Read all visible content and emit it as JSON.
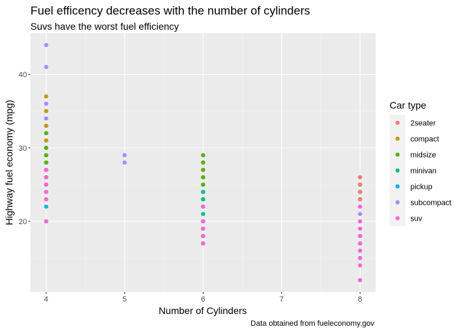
{
  "chart_data": {
    "type": "scatter",
    "title": "Fuel efficency decreases with the number of cylinders",
    "subtitle": "Suvs have the worst fuel efficiency",
    "xlabel": "Number of Cylinders",
    "ylabel": "Highway fuel economy (mpg)",
    "caption": "Data obtained from fueleconomy.gov",
    "xlim": [
      3.8,
      8.2
    ],
    "ylim": [
      10.4,
      45.6
    ],
    "x_ticks": [
      4,
      5,
      6,
      7,
      8
    ],
    "y_ticks": [
      20,
      30,
      40
    ],
    "grid": true,
    "legend": {
      "title": "Car type",
      "position": "right",
      "entries": [
        "2seater",
        "compact",
        "midsize",
        "minivan",
        "pickup",
        "subcompact",
        "suv"
      ]
    },
    "colors": {
      "2seater": "#F8766D",
      "compact": "#C49A00",
      "midsize": "#53B400",
      "minivan": "#00C094",
      "pickup": "#00B6EB",
      "subcompact": "#A58AFF",
      "suv": "#FB61D7"
    },
    "series": [
      {
        "name": "subcompact",
        "points": [
          [
            4,
            44
          ],
          [
            4,
            41
          ],
          [
            4,
            36
          ],
          [
            4,
            35
          ],
          [
            4,
            34
          ],
          [
            4,
            33
          ],
          [
            4,
            32
          ],
          [
            4,
            31
          ],
          [
            4,
            30
          ],
          [
            4,
            29
          ],
          [
            4,
            28
          ],
          [
            4,
            27
          ],
          [
            4,
            26
          ],
          [
            4,
            25
          ],
          [
            4,
            24
          ],
          [
            5,
            29
          ],
          [
            5,
            28
          ],
          [
            6,
            28
          ],
          [
            6,
            26
          ],
          [
            6,
            25
          ],
          [
            6,
            24
          ],
          [
            6,
            23
          ],
          [
            6,
            22
          ],
          [
            8,
            26
          ],
          [
            8,
            25
          ],
          [
            8,
            24
          ],
          [
            8,
            23
          ],
          [
            8,
            22
          ],
          [
            8,
            21
          ],
          [
            8,
            20
          ]
        ]
      },
      {
        "name": "compact",
        "points": [
          [
            4,
            37
          ],
          [
            4,
            35
          ],
          [
            4,
            33
          ],
          [
            4,
            31
          ],
          [
            4,
            30
          ],
          [
            4,
            29
          ],
          [
            4,
            28
          ],
          [
            4,
            27
          ],
          [
            4,
            26
          ],
          [
            4,
            25
          ],
          [
            4,
            24
          ],
          [
            4,
            23
          ],
          [
            6,
            27
          ],
          [
            6,
            26
          ],
          [
            6,
            25
          ],
          [
            6,
            24
          ],
          [
            6,
            23
          ]
        ]
      },
      {
        "name": "midsize",
        "points": [
          [
            4,
            32
          ],
          [
            4,
            30
          ],
          [
            4,
            29
          ],
          [
            4,
            28
          ],
          [
            4,
            27
          ],
          [
            4,
            26
          ],
          [
            6,
            29
          ],
          [
            6,
            28
          ],
          [
            6,
            27
          ],
          [
            6,
            26
          ],
          [
            6,
            25
          ],
          [
            6,
            24
          ],
          [
            8,
            25
          ],
          [
            8,
            24
          ],
          [
            8,
            23
          ]
        ]
      },
      {
        "name": "minivan",
        "points": [
          [
            4,
            24
          ],
          [
            6,
            24
          ],
          [
            6,
            23
          ],
          [
            6,
            22
          ],
          [
            6,
            21
          ],
          [
            6,
            17
          ]
        ]
      },
      {
        "name": "pickup",
        "points": [
          [
            4,
            22
          ],
          [
            4,
            20
          ],
          [
            6,
            20
          ],
          [
            6,
            19
          ],
          [
            6,
            18
          ],
          [
            6,
            17
          ],
          [
            8,
            18
          ],
          [
            8,
            17
          ],
          [
            8,
            16
          ],
          [
            8,
            15
          ],
          [
            8,
            12
          ]
        ]
      },
      {
        "name": "2seater",
        "points": [
          [
            8,
            26
          ],
          [
            8,
            25
          ],
          [
            8,
            24
          ],
          [
            8,
            23
          ]
        ]
      },
      {
        "name": "suv",
        "points": [
          [
            4,
            27
          ],
          [
            4,
            26
          ],
          [
            4,
            25
          ],
          [
            4,
            24
          ],
          [
            4,
            23
          ],
          [
            4,
            20
          ],
          [
            6,
            22
          ],
          [
            6,
            20
          ],
          [
            6,
            19
          ],
          [
            6,
            18
          ],
          [
            6,
            17
          ],
          [
            8,
            22
          ],
          [
            8,
            20
          ],
          [
            8,
            19
          ],
          [
            8,
            18
          ],
          [
            8,
            17
          ],
          [
            8,
            16
          ],
          [
            8,
            15
          ],
          [
            8,
            14
          ],
          [
            8,
            12
          ]
        ]
      }
    ]
  }
}
